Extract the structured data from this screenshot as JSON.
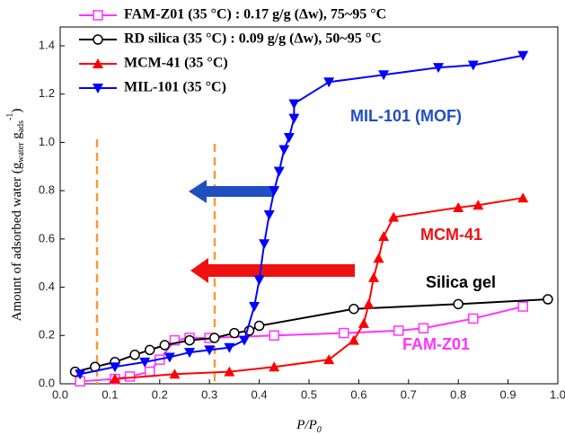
{
  "chart_data": {
    "type": "line",
    "x_label": {
      "main": "P/P",
      "sub": "0"
    },
    "y_label": {
      "main": "Amount of adsorbed water (g",
      "sub1": "water",
      "mid": " g",
      "sub2": "ads",
      "sup": "-1",
      "end": ")"
    },
    "xlim": [
      0,
      1.0
    ],
    "ylim": [
      0,
      1.4
    ],
    "xticks": [
      {
        "value": 0,
        "label": "0.0"
      },
      0.1,
      0.2,
      0.3,
      0.4,
      0.5,
      0.6,
      0.7,
      0.8,
      0.9,
      {
        "value": 1,
        "label": "1.0"
      }
    ],
    "yticks": [
      {
        "value": 0,
        "label": "0.0"
      },
      0.2,
      0.4,
      0.6,
      0.8,
      {
        "value": 1,
        "label": "1.0"
      },
      1.2,
      1.4
    ],
    "series": [
      {
        "name": "FAM-Z01 (35 °C) : 0.17 g/g (Δw), 75~95 °C",
        "color": "#ff33ff",
        "marker": "square",
        "x": [
          0.04,
          0.11,
          0.14,
          0.18,
          0.2,
          0.23,
          0.26,
          0.3,
          0.43,
          0.57,
          0.68,
          0.73,
          0.83,
          0.93
        ],
        "values": [
          0.01,
          0.02,
          0.03,
          0.05,
          0.1,
          0.18,
          0.19,
          0.19,
          0.2,
          0.21,
          0.22,
          0.23,
          0.27,
          0.32
        ]
      },
      {
        "name": "RD silica (35 °C) : 0.09 g/g (Δw), 50~95 °C",
        "color": "#000000",
        "marker": "circle",
        "x": [
          0.03,
          0.07,
          0.11,
          0.15,
          0.18,
          0.21,
          0.26,
          0.31,
          0.35,
          0.38,
          0.4,
          0.59,
          0.8,
          0.98
        ],
        "values": [
          0.05,
          0.07,
          0.09,
          0.12,
          0.14,
          0.16,
          0.18,
          0.19,
          0.21,
          0.22,
          0.24,
          0.31,
          0.33,
          0.35
        ]
      },
      {
        "name": "MCM-41 (35 °C)",
        "color": "#ff0000",
        "marker": "triangle",
        "x": [
          0.11,
          0.23,
          0.34,
          0.43,
          0.54,
          0.59,
          0.61,
          0.62,
          0.63,
          0.64,
          0.65,
          0.67,
          0.8,
          0.84,
          0.93
        ],
        "values": [
          0.02,
          0.04,
          0.05,
          0.07,
          0.1,
          0.18,
          0.25,
          0.33,
          0.44,
          0.52,
          0.61,
          0.69,
          0.73,
          0.74,
          0.77
        ]
      },
      {
        "name": "MIL-101 (35 °C)",
        "color": "#0000ff",
        "marker": "triangle-down",
        "x": [
          0.04,
          0.11,
          0.17,
          0.22,
          0.26,
          0.3,
          0.34,
          0.37,
          0.39,
          0.4,
          0.41,
          0.42,
          0.43,
          0.44,
          0.45,
          0.46,
          0.47,
          0.47,
          0.54,
          0.65,
          0.76,
          0.83,
          0.93
        ],
        "values": [
          0.04,
          0.07,
          0.09,
          0.11,
          0.13,
          0.14,
          0.15,
          0.18,
          0.32,
          0.43,
          0.58,
          0.7,
          0.8,
          0.88,
          0.97,
          1.02,
          1.1,
          1.16,
          1.25,
          1.28,
          1.31,
          1.32,
          1.36
        ]
      }
    ],
    "annotations": [
      "MIL-101 (MOF)",
      "MCM-41",
      "Silica gel",
      "FAM-Z01"
    ]
  }
}
